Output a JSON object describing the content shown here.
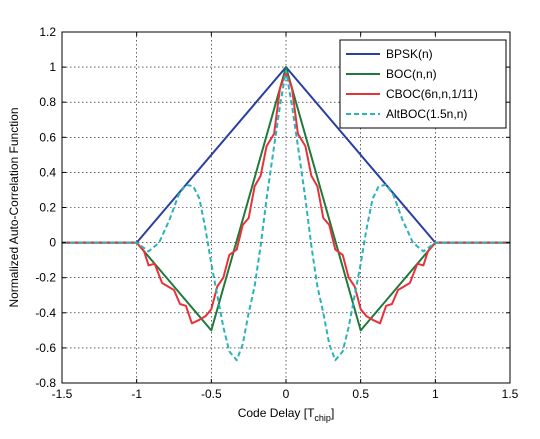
{
  "chart_data": {
    "type": "line",
    "title": "",
    "xlabel": "Code Delay [T",
    "xlabel_sub": "chip",
    "xlabel_end": "]",
    "ylabel": "Normalized Auto-Correlation Function",
    "xlim": [
      -1.5,
      1.5
    ],
    "ylim": [
      -0.8,
      1.2
    ],
    "xticks": [
      -1.5,
      -1,
      -0.5,
      0,
      0.5,
      1,
      1.5
    ],
    "xtick_labels": [
      "-1.5",
      "-1",
      "-0.5",
      "0",
      "0.5",
      "1",
      "1.5"
    ],
    "yticks": [
      -0.8,
      -0.6,
      -0.4,
      -0.2,
      0,
      0.2,
      0.4,
      0.6,
      0.8,
      1,
      1.2
    ],
    "ytick_labels": [
      "-0.8",
      "-0.6",
      "-0.4",
      "-0.2",
      "0",
      "0.2",
      "0.4",
      "0.6",
      "0.8",
      "1",
      "1.2"
    ],
    "grid": true,
    "legend_position": "top-right",
    "series": [
      {
        "name": "BPSK(n)",
        "color": "#2a3fa0",
        "dash": "solid",
        "x": [
          -1.5,
          -1,
          0,
          1,
          1.5
        ],
        "y": [
          0,
          0,
          1,
          0,
          0
        ]
      },
      {
        "name": "BOC(n,n)",
        "color": "#1f7a3c",
        "dash": "solid",
        "x": [
          -1.5,
          -1,
          -0.5,
          0,
          0.5,
          1,
          1.5
        ],
        "y": [
          0,
          0,
          -0.5,
          1,
          -0.5,
          0,
          0
        ]
      },
      {
        "name": "CBOC(6n,n,1/11)",
        "color": "#e8323a",
        "dash": "solid",
        "x": [
          -1.5,
          -1,
          -0.95,
          -0.92,
          -0.88,
          -0.83,
          -0.79,
          -0.75,
          -0.71,
          -0.67,
          -0.63,
          -0.58,
          -0.54,
          -0.5,
          -0.46,
          -0.42,
          -0.38,
          -0.33,
          -0.29,
          -0.25,
          -0.21,
          -0.17,
          -0.13,
          -0.08,
          -0.04,
          0,
          0.04,
          0.08,
          0.13,
          0.17,
          0.21,
          0.25,
          0.29,
          0.33,
          0.38,
          0.42,
          0.46,
          0.5,
          0.54,
          0.58,
          0.63,
          0.67,
          0.71,
          0.75,
          0.79,
          0.83,
          0.88,
          0.92,
          0.95,
          1,
          1.5
        ],
        "y": [
          0,
          0,
          -0.05,
          -0.13,
          -0.12,
          -0.23,
          -0.25,
          -0.27,
          -0.35,
          -0.36,
          -0.46,
          -0.44,
          -0.42,
          -0.38,
          -0.25,
          -0.2,
          -0.07,
          -0.04,
          0.1,
          0.14,
          0.32,
          0.38,
          0.55,
          0.62,
          0.88,
          0.97,
          0.88,
          0.62,
          0.55,
          0.38,
          0.32,
          0.14,
          0.1,
          -0.04,
          -0.07,
          -0.2,
          -0.25,
          -0.38,
          -0.42,
          -0.44,
          -0.46,
          -0.36,
          -0.35,
          -0.27,
          -0.25,
          -0.23,
          -0.12,
          -0.13,
          -0.05,
          0,
          0
        ]
      },
      {
        "name": "AltBOC(1.5n,n)",
        "color": "#2ab3b8",
        "dash": "dashed",
        "x": [
          -1.5,
          -1,
          -0.92,
          -0.85,
          -0.78,
          -0.72,
          -0.67,
          -0.62,
          -0.58,
          -0.54,
          -0.5,
          -0.46,
          -0.42,
          -0.38,
          -0.33,
          -0.29,
          -0.25,
          -0.21,
          -0.17,
          -0.13,
          -0.08,
          -0.04,
          0,
          0.04,
          0.08,
          0.13,
          0.17,
          0.21,
          0.25,
          0.29,
          0.33,
          0.38,
          0.42,
          0.46,
          0.5,
          0.54,
          0.58,
          0.62,
          0.67,
          0.72,
          0.78,
          0.85,
          0.92,
          1,
          1.5
        ],
        "y": [
          0,
          0,
          -0.05,
          0.0,
          0.13,
          0.27,
          0.33,
          0.32,
          0.25,
          0.08,
          -0.12,
          -0.3,
          -0.48,
          -0.62,
          -0.67,
          -0.58,
          -0.4,
          -0.25,
          -0.02,
          0.25,
          0.55,
          0.78,
          0.98,
          0.78,
          0.55,
          0.25,
          -0.02,
          -0.25,
          -0.4,
          -0.58,
          -0.67,
          -0.62,
          -0.48,
          -0.3,
          -0.12,
          0.08,
          0.25,
          0.32,
          0.33,
          0.27,
          0.13,
          0.0,
          -0.05,
          0,
          0
        ]
      }
    ]
  }
}
